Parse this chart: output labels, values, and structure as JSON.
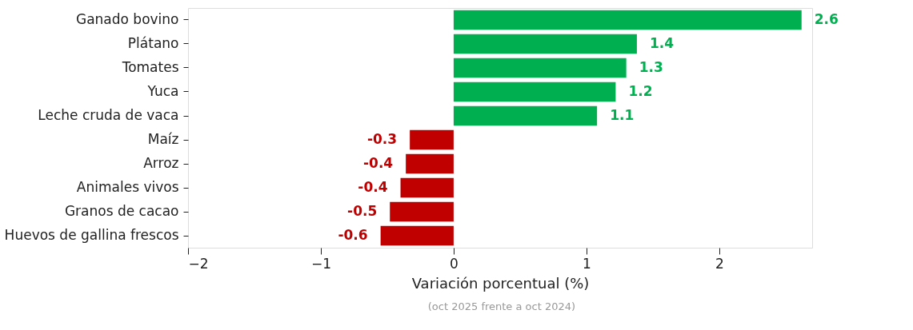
{
  "chart_data": {
    "type": "bar",
    "orientation": "horizontal",
    "categories": [
      "Ganado bovino",
      "Plátano",
      "Tomates",
      "Yuca",
      "Leche cruda de vaca",
      "Maíz",
      "Arroz",
      "Animales vivos",
      "Granos de cacao",
      "Huevos de gallina frescos"
    ],
    "values": [
      2.62,
      1.38,
      1.3,
      1.22,
      1.08,
      -0.33,
      -0.36,
      -0.4,
      -0.48,
      -0.55
    ],
    "value_labels": [
      "2.6",
      "1.4",
      "1.3",
      "1.2",
      "1.1",
      "-0.3",
      "-0.4",
      "-0.4",
      "-0.5",
      "-0.6"
    ],
    "colors": [
      "#00b050",
      "#00b050",
      "#00b050",
      "#00b050",
      "#00b050",
      "#c00000",
      "#c00000",
      "#c00000",
      "#c00000",
      "#c00000"
    ],
    "xlim": [
      -2,
      2.7
    ],
    "xticks": [
      -2,
      -1,
      0,
      1,
      2
    ],
    "xlabel": "Variación porcentual (%)",
    "annotations": [
      "(oct 2025 frente a oct 2024)"
    ],
    "grid": false
  }
}
